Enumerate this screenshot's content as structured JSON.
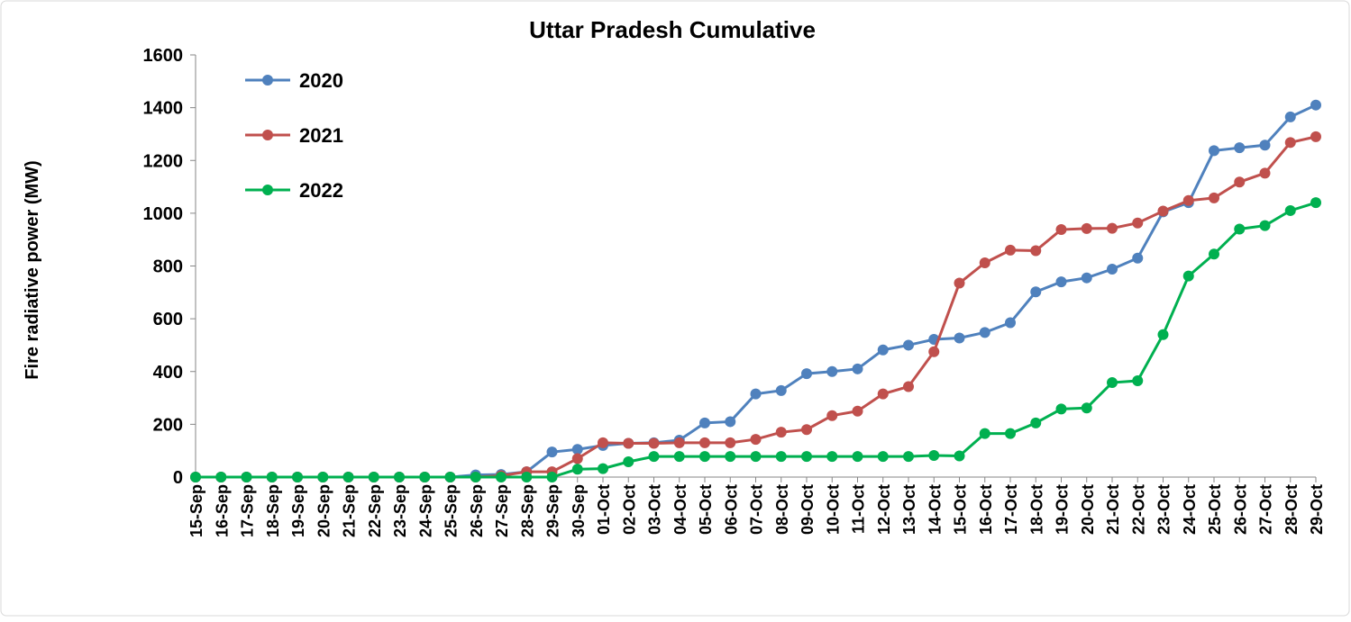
{
  "chart_data": {
    "type": "line",
    "title": "Uttar Pradesh Cumulative",
    "y_label": "Fire radiative power (MW)",
    "categories": [
      "15-Sep",
      "16-Sep",
      "17-Sep",
      "18-Sep",
      "19-Sep",
      "20-Sep",
      "21-Sep",
      "22-Sep",
      "23-Sep",
      "24-Sep",
      "25-Sep",
      "26-Sep",
      "27-Sep",
      "28-Sep",
      "29-Sep",
      "30-Sep",
      "01-Oct",
      "02-Oct",
      "03-Oct",
      "04-Oct",
      "05-Oct",
      "06-Oct",
      "07-Oct",
      "08-Oct",
      "09-Oct",
      "10-Oct",
      "11-Oct",
      "12-Oct",
      "13-Oct",
      "14-Oct",
      "15-Oct",
      "16-Oct",
      "17-Oct",
      "18-Oct",
      "19-Oct",
      "20-Oct",
      "21-Oct",
      "22-Oct",
      "23-Oct",
      "24-Oct",
      "25-Oct",
      "26-Oct",
      "27-Oct",
      "28-Oct",
      "29-Oct"
    ],
    "series": [
      {
        "name": "2020",
        "color": "#4f81bd",
        "values": [
          0,
          0,
          0,
          0,
          0,
          0,
          0,
          0,
          0,
          0,
          0,
          8,
          10,
          20,
          95,
          105,
          120,
          128,
          130,
          140,
          205,
          210,
          315,
          328,
          392,
          400,
          410,
          482,
          500,
          522,
          527,
          548,
          585,
          702,
          740,
          755,
          788,
          830,
          1005,
          1040,
          1237,
          1248,
          1258,
          1365,
          1410
        ]
      },
      {
        "name": "2021",
        "color": "#c0504d",
        "values": [
          0,
          0,
          0,
          0,
          0,
          0,
          0,
          0,
          0,
          0,
          0,
          0,
          5,
          20,
          20,
          70,
          130,
          128,
          128,
          130,
          130,
          130,
          143,
          170,
          180,
          233,
          250,
          315,
          343,
          475,
          735,
          812,
          860,
          858,
          938,
          942,
          943,
          963,
          1008,
          1048,
          1058,
          1118,
          1152,
          1268,
          1290
        ]
      },
      {
        "name": "2022",
        "color": "#00b050",
        "values": [
          0,
          0,
          0,
          0,
          0,
          0,
          0,
          0,
          0,
          0,
          0,
          0,
          0,
          0,
          0,
          30,
          32,
          58,
          78,
          78,
          78,
          78,
          78,
          78,
          78,
          78,
          78,
          78,
          78,
          82,
          80,
          165,
          165,
          205,
          258,
          262,
          358,
          365,
          540,
          762,
          845,
          940,
          953,
          1010,
          1040
        ]
      }
    ],
    "ylim": [
      0,
      1600
    ],
    "yticks": [
      0,
      200,
      400,
      600,
      800,
      1000,
      1200,
      1400,
      1600
    ],
    "grid": false,
    "legend": "upper left"
  }
}
